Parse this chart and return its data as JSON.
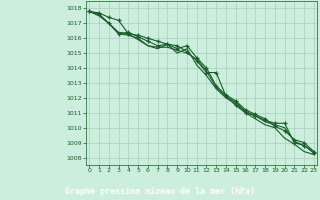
{
  "bg_color": "#cbeedd",
  "grid_color": "#aaccbb",
  "line_color": "#1a5c2a",
  "marker_color": "#1a5c2a",
  "xlabel": "Graphe pression niveau de la mer (hPa)",
  "xlabel_color": "#ffffff",
  "xlabel_bg": "#2a7a3a",
  "tick_color": "#1a5c2a",
  "ylim": [
    1007.5,
    1018.5
  ],
  "xlim": [
    -0.3,
    23.3
  ],
  "yticks": [
    1008,
    1009,
    1010,
    1011,
    1012,
    1013,
    1014,
    1015,
    1016,
    1017,
    1018
  ],
  "xticks": [
    0,
    1,
    2,
    3,
    4,
    5,
    6,
    7,
    8,
    9,
    10,
    11,
    12,
    13,
    14,
    15,
    16,
    17,
    18,
    19,
    20,
    21,
    22,
    23
  ],
  "series": [
    [
      1017.8,
      1017.7,
      1017.4,
      1017.2,
      1016.3,
      1016.2,
      1016.0,
      1015.8,
      1015.6,
      1015.5,
      1015.1,
      1014.5,
      1013.7,
      1013.7,
      1012.1,
      1011.5,
      1011.0,
      1010.8,
      1010.5,
      1010.3,
      1010.3,
      1009.0,
      1008.8,
      1008.3
    ],
    [
      1017.8,
      1017.6,
      1017.0,
      1016.3,
      1016.2,
      1016.0,
      1015.5,
      1015.3,
      1015.6,
      1015.0,
      1015.3,
      1014.2,
      1013.5,
      1012.6,
      1012.0,
      1011.6,
      1011.0,
      1010.6,
      1010.2,
      1010.0,
      1009.3,
      1008.9,
      1008.4,
      1008.2
    ],
    [
      1017.8,
      1017.6,
      1017.0,
      1016.3,
      1016.4,
      1016.1,
      1015.8,
      1015.5,
      1015.6,
      1015.3,
      1015.5,
      1014.7,
      1014.0,
      1012.8,
      1012.2,
      1011.8,
      1011.2,
      1010.9,
      1010.6,
      1010.1,
      1009.8,
      1009.2,
      1009.0,
      1008.4
    ],
    [
      1017.8,
      1017.5,
      1017.0,
      1016.4,
      1016.3,
      1015.9,
      1015.5,
      1015.4,
      1015.4,
      1015.2,
      1015.0,
      1014.6,
      1013.8,
      1012.7,
      1012.1,
      1011.7,
      1011.1,
      1010.8,
      1010.4,
      1010.2,
      1010.0,
      1009.1,
      1008.8,
      1008.4
    ]
  ],
  "marker_series": [
    0,
    2
  ],
  "figsize": [
    3.2,
    2.0
  ],
  "dpi": 100
}
